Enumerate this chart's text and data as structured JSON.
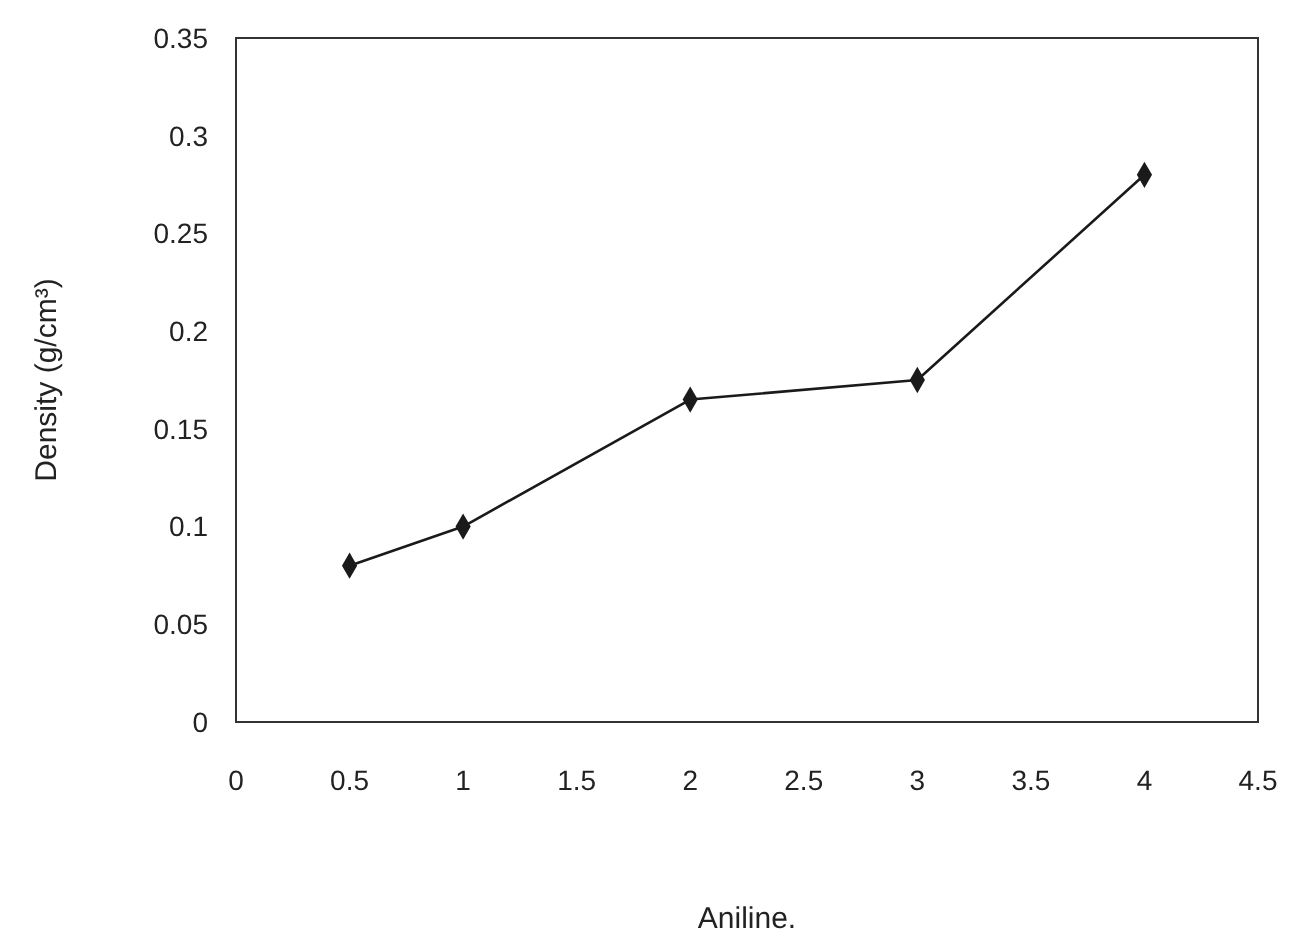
{
  "chart_data": {
    "type": "line",
    "xlabel": "Aniline.",
    "ylabel": "Density (g/cm³)",
    "x": [
      0.5,
      1,
      2,
      3,
      4
    ],
    "series": [
      {
        "color": "#1a1a1a",
        "values": [
          0.08,
          0.1,
          0.165,
          0.175,
          0.28
        ]
      }
    ],
    "xlim": [
      0,
      4.5
    ],
    "xticks": [
      0,
      0.5,
      1,
      1.5,
      2,
      2.5,
      3,
      3.5,
      4,
      4.5
    ],
    "ylim": [
      0,
      0.35
    ],
    "yticks": [
      0,
      0.05,
      0.1,
      0.15,
      0.2,
      0.25,
      0.3,
      0.35
    ],
    "grid": false,
    "marker": "diamond",
    "line_style": "solid"
  }
}
